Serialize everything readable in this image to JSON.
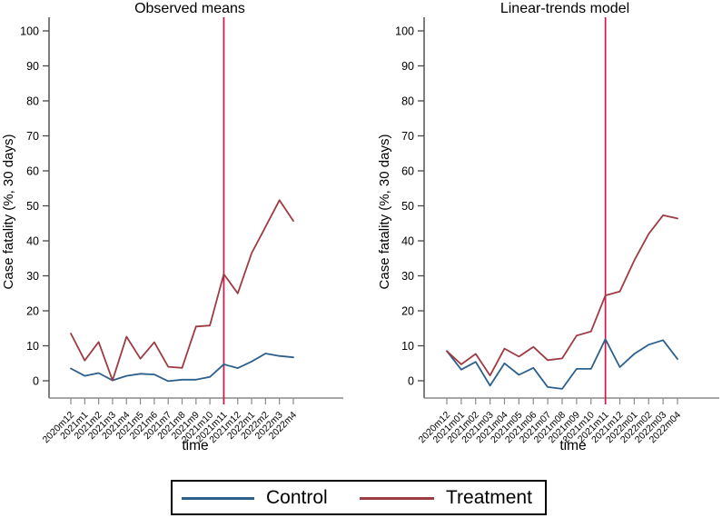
{
  "colors": {
    "control": "#2c608c",
    "treatment": "#9e3b43",
    "vline": "#d01648",
    "y_axis": "#474747",
    "x_axis": "#8a8a8a",
    "text": "#000000",
    "legend_border": "#000000"
  },
  "legend": {
    "items": [
      {
        "label": "Control",
        "color_key": "control"
      },
      {
        "label": "Treatment",
        "color_key": "treatment"
      }
    ]
  },
  "chart_data": [
    {
      "type": "line",
      "title": "Observed means",
      "xlabel": "time",
      "ylabel": "Case fatality (%, 30 days)",
      "ylim": [
        0,
        100
      ],
      "yticks": [
        0,
        10,
        20,
        30,
        40,
        50,
        60,
        70,
        80,
        90,
        100
      ],
      "grid": false,
      "categories": [
        "2020m12",
        "2021m1",
        "2021m2",
        "2021m3",
        "2021m4",
        "2021m5",
        "2021m6",
        "2021m7",
        "2021m8",
        "2021m9",
        "2021m10",
        "2021m11",
        "2021m12",
        "2022m1",
        "2022m2",
        "2022m3",
        "2022m4"
      ],
      "vline_at": "2021m11",
      "series": [
        {
          "name": "Control",
          "color_key": "control",
          "values": [
            3.5,
            1.4,
            2.2,
            0.1,
            1.4,
            2.0,
            1.8,
            -0.1,
            0.3,
            0.3,
            1.1,
            4.7,
            3.6,
            5.5,
            7.8,
            7.1,
            6.7
          ]
        },
        {
          "name": "Treatment",
          "color_key": "treatment",
          "values": [
            13.5,
            5.8,
            11.1,
            0.1,
            12.6,
            6.3,
            11.0,
            4.0,
            3.7,
            15.5,
            15.8,
            30.5,
            25.0,
            36.5,
            44.0,
            51.6,
            45.7
          ]
        }
      ]
    },
    {
      "type": "line",
      "title": "Linear-trends model",
      "xlabel": "time",
      "ylabel": "Case fatality (%, 30 days)",
      "ylim": [
        0,
        100
      ],
      "yticks": [
        0,
        10,
        20,
        30,
        40,
        50,
        60,
        70,
        80,
        90,
        100
      ],
      "grid": false,
      "categories": [
        "2020m12",
        "2021m01",
        "2021m02",
        "2021m03",
        "2021m04",
        "2021m05",
        "2021m06",
        "2021m07",
        "2021m08",
        "2021m09",
        "2021m10",
        "2021m11",
        "2021m12",
        "2022m01",
        "2022m02",
        "2022m03",
        "2022m04"
      ],
      "vline_at": "2021m11",
      "series": [
        {
          "name": "Control",
          "color_key": "control",
          "values": [
            8.5,
            3.2,
            5.4,
            -1.4,
            5.0,
            1.7,
            3.7,
            -1.8,
            -2.3,
            3.4,
            3.4,
            11.9,
            3.9,
            7.7,
            10.3,
            11.6,
            6.2
          ]
        },
        {
          "name": "Treatment",
          "color_key": "treatment",
          "values": [
            8.5,
            4.7,
            7.7,
            1.5,
            9.2,
            6.9,
            9.7,
            5.9,
            6.4,
            12.9,
            14.1,
            24.4,
            25.5,
            34.4,
            42.0,
            47.3,
            46.4
          ]
        }
      ]
    }
  ]
}
